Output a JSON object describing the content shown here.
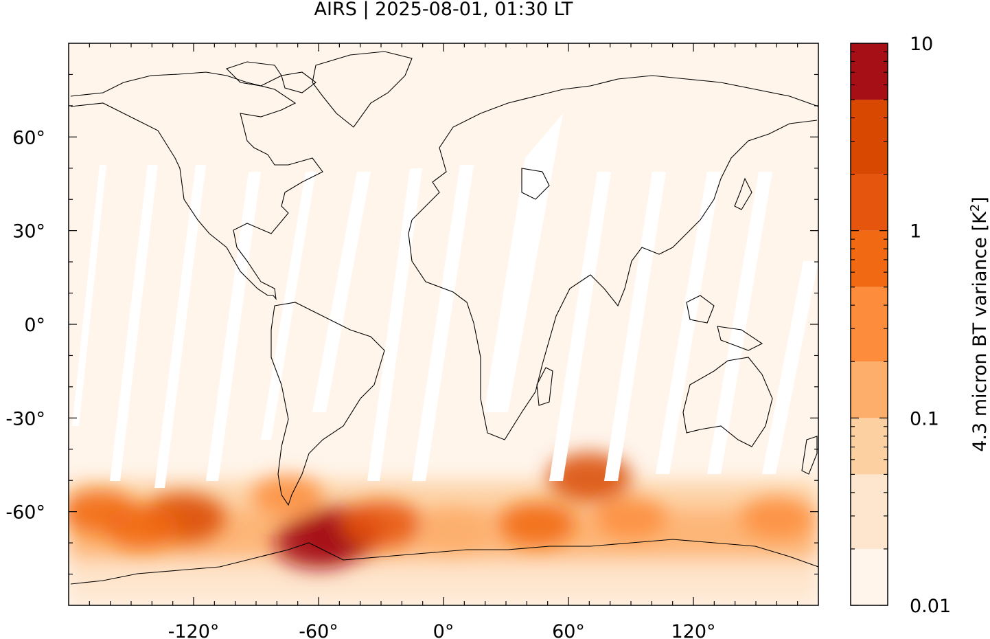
{
  "title": "AIRS | 2025-08-01, 01:30 LT",
  "map": {
    "projection": "plate-carree",
    "lon_range": [
      -180,
      180
    ],
    "lat_range": [
      -90,
      90
    ],
    "x_tick_labels": [
      {
        "value": -120,
        "label": "-120°"
      },
      {
        "value": -60,
        "label": "-60°"
      },
      {
        "value": 0,
        "label": "0°"
      },
      {
        "value": 60,
        "label": "60°"
      },
      {
        "value": 120,
        "label": "120°"
      }
    ],
    "y_tick_labels": [
      {
        "value": 60,
        "label": "60°"
      },
      {
        "value": 30,
        "label": "30°"
      },
      {
        "value": 0,
        "label": "0°"
      },
      {
        "value": -30,
        "label": "-30°"
      },
      {
        "value": -60,
        "label": "-60°"
      }
    ],
    "background_color": "#fff5eb",
    "coastline_color": "#000000",
    "field_description": "4.3 micron brightness temperature variance, high over Southern Ocean (40S-75S), peak near Antarctic Peninsula",
    "hotspots": [
      {
        "lon": -75,
        "lat": -55,
        "level": 4
      },
      {
        "lon": -60,
        "lat": -70,
        "level": 8
      },
      {
        "lon": -50,
        "lat": -67,
        "level": 8
      },
      {
        "lon": -30,
        "lat": -64,
        "level": 6
      },
      {
        "lon": -125,
        "lat": -62,
        "level": 7
      },
      {
        "lon": -165,
        "lat": -60,
        "level": 5
      },
      {
        "lon": -145,
        "lat": -65,
        "level": 5
      },
      {
        "lon": 45,
        "lat": -64,
        "level": 5
      },
      {
        "lon": 90,
        "lat": -62,
        "level": 4
      },
      {
        "lon": 160,
        "lat": -62,
        "level": 4
      },
      {
        "lon": 70,
        "lat": -49,
        "level": 7
      },
      {
        "lon": 5,
        "lat": -66,
        "level": 3
      }
    ]
  },
  "colorbar": {
    "label_text": "4.3 micron BT variance [K",
    "label_sup": "2",
    "label_close": "]",
    "scale": "log",
    "range": [
      0.01,
      10
    ],
    "tick_labels": [
      "10",
      "1",
      "0.1",
      "0.01"
    ],
    "levels": [
      0.01,
      0.02,
      0.05,
      0.1,
      0.2,
      0.5,
      1,
      2,
      5,
      10
    ],
    "colors": [
      "#fff5eb",
      "#fee6ce",
      "#fdd0a2",
      "#fdae6b",
      "#fd8d3c",
      "#f16913",
      "#e6550d",
      "#d94801",
      "#a50f15",
      "#7f0000"
    ]
  }
}
